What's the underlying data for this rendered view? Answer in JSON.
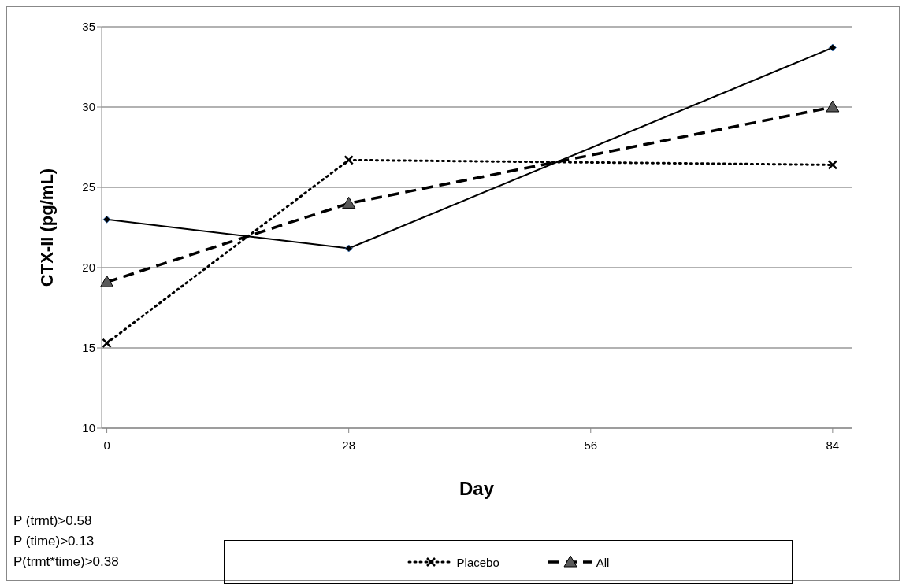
{
  "chart_data": {
    "type": "line",
    "ylabel": "CTX-II (pg/mL)",
    "xlabel": "Day",
    "x": [
      0,
      28,
      84
    ],
    "series": [
      {
        "color": "#000000",
        "values": [
          23.0,
          21.2,
          33.7
        ],
        "marker": "diamond",
        "line_style": "solid"
      },
      {
        "name": "Placebo",
        "color": "#000000",
        "values": [
          15.3,
          26.7,
          26.4
        ],
        "marker": "cross",
        "line_style": "dotted"
      },
      {
        "name": "All",
        "color": "#000000",
        "values": [
          19.1,
          24.0,
          30.0
        ],
        "marker": "triangle",
        "line_style": "dashed"
      }
    ],
    "xlim": [
      -0.6,
      86.2
    ],
    "xticks": [
      0,
      28,
      56,
      84
    ],
    "ylim": [
      10,
      35
    ],
    "yticks": [
      10,
      15,
      20,
      25,
      30,
      35
    ],
    "grid": "y",
    "legend": "bottom",
    "annotations": [
      "P (trmt)>0.58",
      "P (time)>0.13",
      "P(trmt*time)>0.38"
    ]
  }
}
